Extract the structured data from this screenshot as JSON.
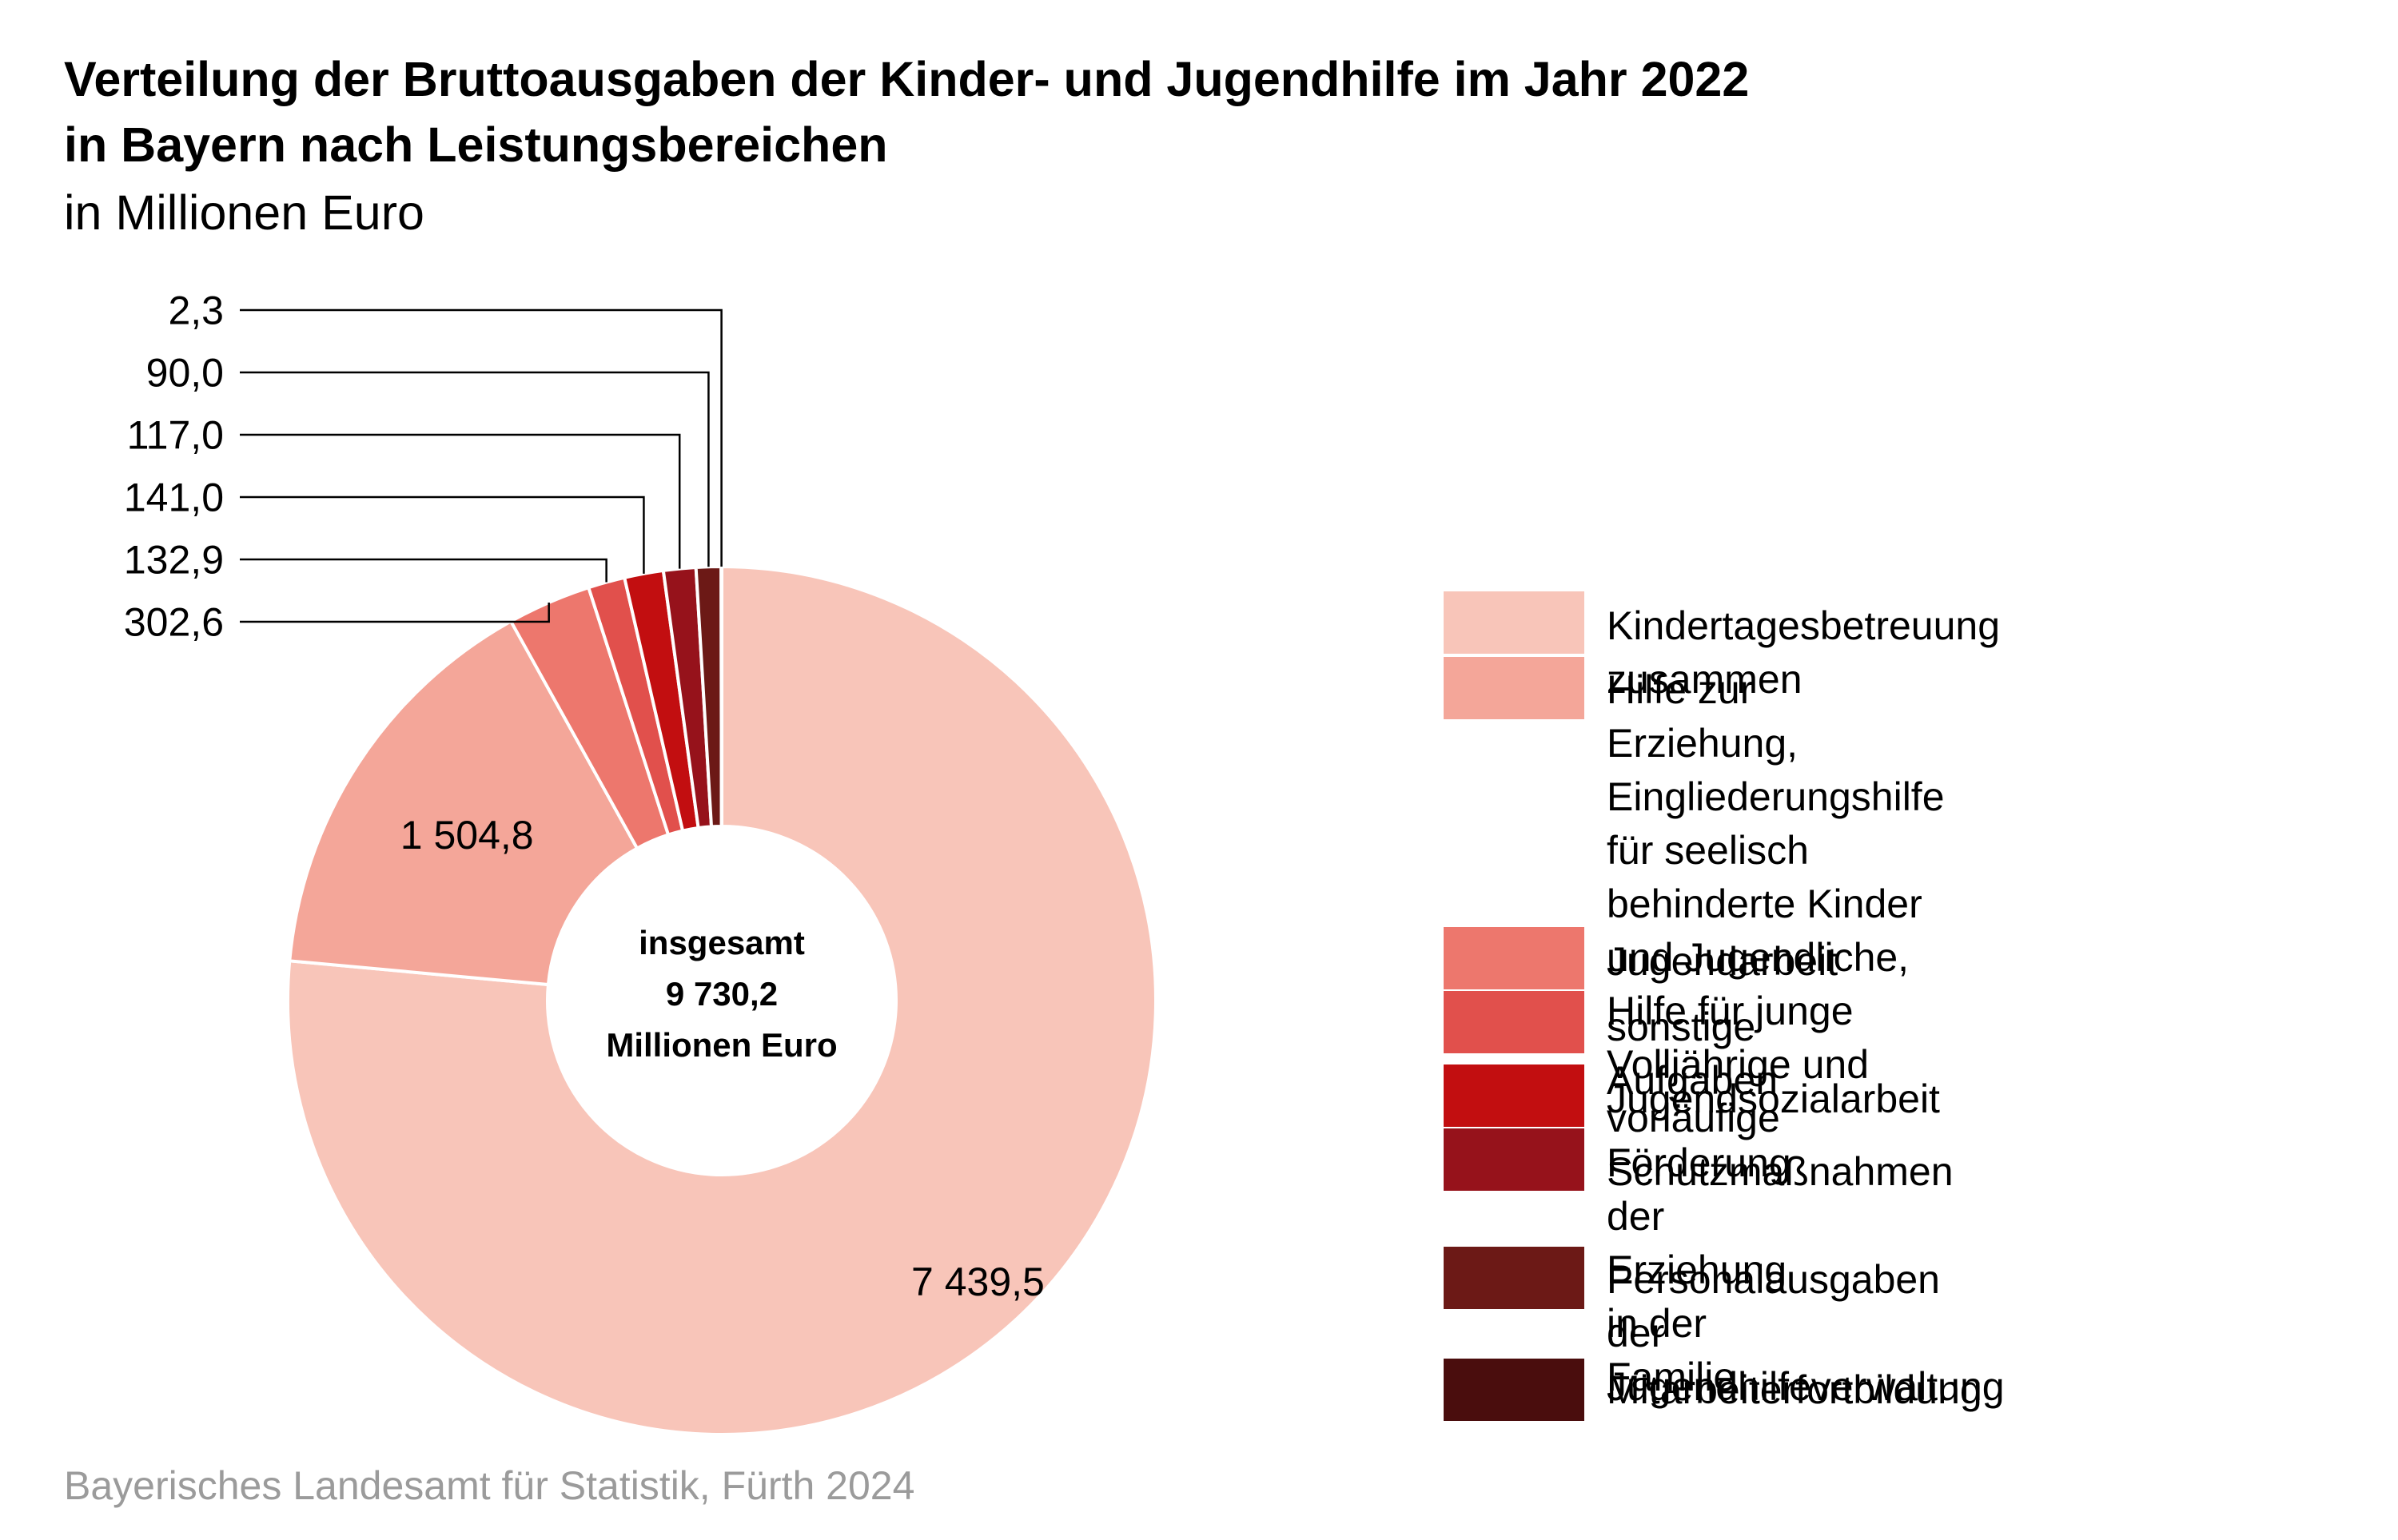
{
  "header": {
    "title_line1": "Verteilung der Bruttoausgaben der Kinder- und Jugendhilfe im Jahr 2022",
    "title_line2": "in Bayern nach Leistungsbereichen",
    "subtitle": "in Millionen Euro"
  },
  "source": "Bayerisches Landesamt für Statistik, Fürth 2024",
  "chart_data": {
    "type": "pie",
    "donut": true,
    "title": "Verteilung der Bruttoausgaben der Kinder- und Jugendhilfe im Jahr 2022 in Bayern nach Leistungsbereichen",
    "unit": "in Millionen Euro",
    "center_label": [
      "insgesamt",
      "9 730,2",
      "Millionen Euro"
    ],
    "total": 9730.2,
    "legend_position": "right",
    "slices": [
      {
        "label": "Kindertagesbetreuung zusammen",
        "value": 7439.5,
        "value_label": "7 439,5",
        "color": "#f8c5b9"
      },
      {
        "label": "Hilfe zur Erziehung,\nEingliederungshilfe für seelisch\nbehinderte Kinder und Jugendliche,\nHilfe für junge Volljährige und\nvorläufige Schutzmaßnahmen",
        "value": 1504.8,
        "value_label": "1 504,8",
        "color": "#f4a699"
      },
      {
        "label": "Jugendarbeit",
        "value": 302.6,
        "value_label": "302,6",
        "color": "#ed776d"
      },
      {
        "label": "sonstige Aufgaben",
        "value": 132.9,
        "value_label": "132,9",
        "color": "#e1504c"
      },
      {
        "label": "Jugendsozialarbeit",
        "value": 141.0,
        "value_label": "141,0",
        "color": "#c20e10"
      },
      {
        "label": "Förderung der Erziehung\nin der Familie",
        "value": 117.0,
        "value_label": "117,0",
        "color": "#96121b"
      },
      {
        "label": "Personalausgaben der\nJugendhilfeverwaltung",
        "value": 90.0,
        "value_label": "90,0",
        "color": "#6c1916"
      },
      {
        "label": "Mitarbeiterfortbildung",
        "value": 2.3,
        "value_label": "2,3",
        "color": "#4a0d0d"
      }
    ]
  }
}
